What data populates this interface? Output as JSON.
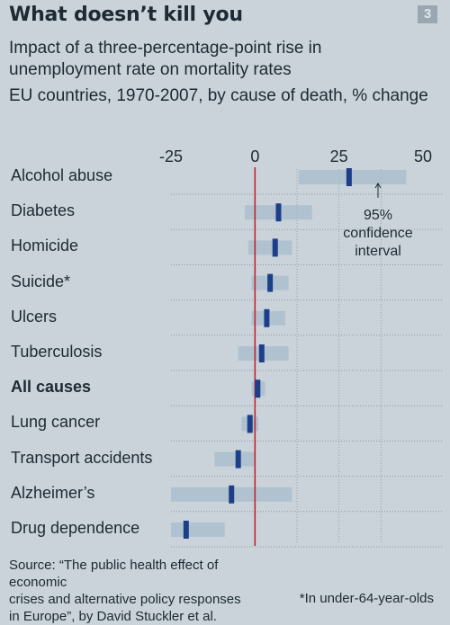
{
  "header": {
    "title": "What doesn’t kill you",
    "badge": "3",
    "subtitle": "Impact of a three-percentage-point rise in unemployment rate on mortality rates",
    "note": "EU countries, 1970-2007, by cause of death, % change"
  },
  "chart_data": {
    "type": "bar",
    "xlim": [
      -25,
      50
    ],
    "ticks": [
      "-25",
      "0",
      "25",
      "50"
    ],
    "categories": [
      "Alcohol abuse",
      "Diabetes",
      "Homicide",
      "Suicide*",
      "Ulcers",
      "Tuberculosis",
      "All causes",
      "Lung cancer",
      "Transport accidents",
      "Alzheimer’s",
      "Drug dependence"
    ],
    "values": [
      28,
      7,
      6,
      4.5,
      3.5,
      2,
      0.8,
      -1.5,
      -5,
      -7,
      -20.5
    ],
    "ci_low": [
      13,
      -3,
      -2,
      -1,
      -1,
      -5,
      -1,
      -4,
      -12,
      -25,
      -25
    ],
    "ci_high": [
      45,
      17,
      11,
      10,
      9,
      10,
      3,
      1,
      0,
      11,
      -9
    ],
    "grid": true,
    "annotation": [
      "95%",
      "confidence",
      "interval"
    ],
    "colors": {
      "point": "#1d3f8a",
      "ci": "#a7bccb",
      "zero_line": "#c0242e",
      "grid": "#8b99a4"
    }
  },
  "footer": {
    "source": [
      "Source: “The public health effect of economic",
      "crises and alternative policy responses",
      "in Europe”, by David Stuckler et al."
    ],
    "footnote": "*In under-64-year-olds"
  }
}
